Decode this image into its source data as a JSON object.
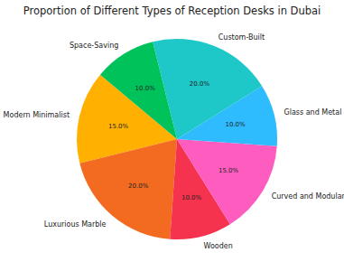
{
  "chart_data": {
    "type": "pie",
    "title": "Proportion of Different Types of Reception Desks in Dubai",
    "categories": [
      "Modern Minimalist",
      "Luxurious Marble",
      "Wooden",
      "Curved and Modular",
      "Glass and Metal",
      "Custom-Built",
      "Space-Saving"
    ],
    "values": [
      15,
      20,
      10,
      15,
      10,
      20,
      10
    ],
    "value_labels": [
      "15.0%",
      "20.0%",
      "10.0%",
      "15.0%",
      "10.0%",
      "20.0%",
      "10.0%"
    ],
    "colors": [
      "#ffb000",
      "#f26b21",
      "#f5334f",
      "#ff5cc0",
      "#2ebcff",
      "#1ec8c8",
      "#00c25a"
    ],
    "data_labels": true
  }
}
